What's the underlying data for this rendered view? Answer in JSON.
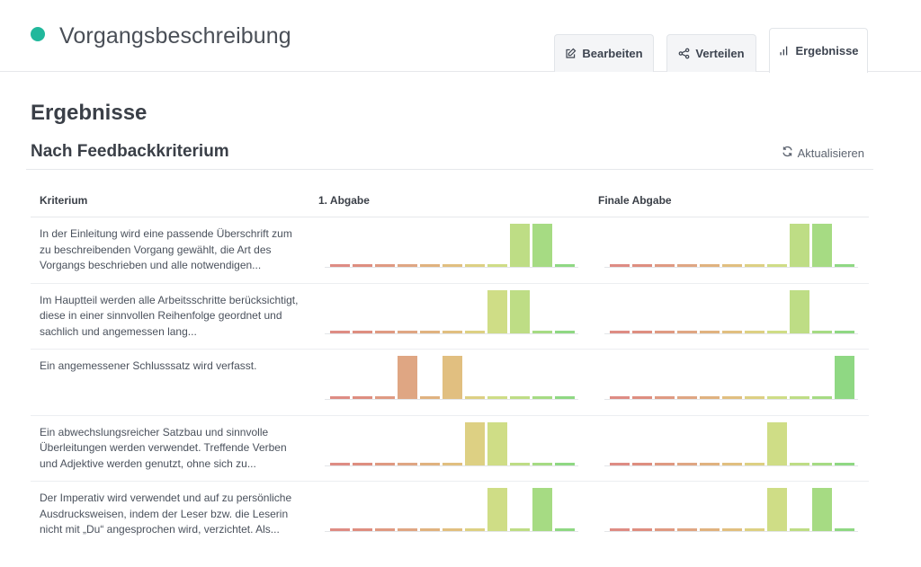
{
  "header": {
    "title": "Vorgangsbeschreibung",
    "status_color": "#21b89c",
    "tabs": [
      {
        "label": "Bearbeiten",
        "icon": "edit-icon"
      },
      {
        "label": "Verteilen",
        "icon": "share-icon"
      },
      {
        "label": "Ergebnisse",
        "icon": "bar-chart-icon",
        "active": true
      }
    ]
  },
  "main": {
    "title": "Ergebnisse",
    "subtitle": "Nach Feedbackkriterium",
    "refresh_label": "Aktualisieren",
    "columns": [
      "Kriterium",
      "1. Abgabe",
      "Finale Abgabe"
    ]
  },
  "bar_colors": [
    "#de8c84",
    "#de8e80",
    "#df9a82",
    "#dfa683",
    "#e0b27f",
    "#e1bf80",
    "#ddd083",
    "#cfdd86",
    "#bedd85",
    "#a6db83",
    "#8fd883"
  ],
  "chart_data": {
    "type": "bar",
    "note_scale": "each mini chart shows the share of submissions per rating level (11 levels, lowest to highest)",
    "ylim": [
      0,
      1
    ],
    "rows": [
      {
        "criterion": "In der Einleitung wird eine passende Überschrift zum zu beschreibenden Vorgang gewählt, die Art des Vorgangs beschrieben und alle notwendigen...",
        "first": [
          0,
          0,
          0,
          0,
          0,
          0,
          0,
          0,
          1,
          1,
          0
        ],
        "final": [
          0,
          0,
          0,
          0,
          0,
          0,
          0,
          0,
          1,
          1,
          0
        ]
      },
      {
        "criterion": "Im Hauptteil werden alle Arbeitsschritte berücksichtigt, diese in einer sinnvollen Reihenfolge geordnet und sachlich und angemessen lang...",
        "first": [
          0,
          0,
          0,
          0,
          0,
          0,
          0,
          1,
          1,
          0,
          0
        ],
        "final": [
          0,
          0,
          0,
          0,
          0,
          0,
          0,
          0,
          1,
          0,
          0
        ]
      },
      {
        "criterion": "Ein angemessener Schlusssatz wird verfasst.",
        "first": [
          0,
          0,
          0,
          1,
          0,
          1,
          0,
          0,
          0,
          0,
          0
        ],
        "final": [
          0,
          0,
          0,
          0,
          0,
          0,
          0,
          0,
          0,
          0,
          1
        ]
      },
      {
        "criterion": "Ein abwechslungsreicher Satzbau und sinnvolle Überleitungen werden verwendet. Treffende Verben und Adjektive werden genutzt, ohne sich zu...",
        "first": [
          0,
          0,
          0,
          0,
          0,
          0,
          1,
          1,
          0,
          0,
          0
        ],
        "final": [
          0,
          0,
          0,
          0,
          0,
          0,
          0,
          1,
          0,
          0,
          0
        ]
      },
      {
        "criterion": "Der Imperativ wird verwendet und auf zu persönliche Ausdrucksweisen, indem der Leser bzw. die Leserin nicht mit „Du“ angesprochen wird, verzichtet. Als...",
        "first": [
          0,
          0,
          0,
          0,
          0,
          0,
          0,
          1,
          0,
          1,
          0
        ],
        "final": [
          0,
          0,
          0,
          0,
          0,
          0,
          0,
          1,
          0,
          1,
          0
        ]
      }
    ]
  }
}
